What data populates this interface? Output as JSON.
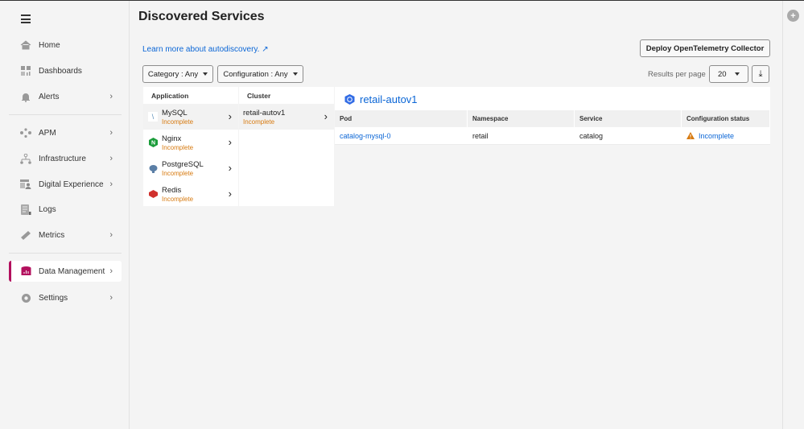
{
  "sidebar": {
    "items": [
      {
        "label": "Home",
        "icon": "home-icon",
        "chevron": false
      },
      {
        "label": "Dashboards",
        "icon": "dashboards-icon",
        "chevron": false
      },
      {
        "label": "Alerts",
        "icon": "bell-icon",
        "chevron": true
      },
      {
        "label": "APM",
        "icon": "apm-icon",
        "chevron": true
      },
      {
        "label": "Infrastructure",
        "icon": "infrastructure-icon",
        "chevron": true
      },
      {
        "label": "Digital Experience",
        "icon": "digital-experience-icon",
        "chevron": true
      },
      {
        "label": "Logs",
        "icon": "logs-icon",
        "chevron": false
      },
      {
        "label": "Metrics",
        "icon": "metrics-icon",
        "chevron": true
      },
      {
        "label": "Data Management",
        "icon": "data-management-icon",
        "chevron": true,
        "active": true
      },
      {
        "label": "Settings",
        "icon": "gear-icon",
        "chevron": true
      }
    ],
    "accent": "#b3105e"
  },
  "page": {
    "title": "Discovered Services",
    "learn_link": "Learn more about autodiscovery.",
    "deploy_button": "Deploy OpenTelemetry Collector"
  },
  "filters": {
    "category": "Category : Any",
    "configuration": "Configuration : Any"
  },
  "pagination": {
    "results_label": "Results per page",
    "per_page": "20"
  },
  "applications": {
    "header": "Application",
    "items": [
      {
        "name": "MySQL",
        "status": "Incomplete",
        "icon": "mysql-icon",
        "selected": true
      },
      {
        "name": "Nginx",
        "status": "Incomplete",
        "icon": "nginx-icon"
      },
      {
        "name": "PostgreSQL",
        "status": "Incomplete",
        "icon": "postgresql-icon"
      },
      {
        "name": "Redis",
        "status": "Incomplete",
        "icon": "redis-icon"
      }
    ]
  },
  "clusters": {
    "header": "Cluster",
    "items": [
      {
        "name": "retail-autov1",
        "status": "Incomplete"
      }
    ]
  },
  "detail": {
    "title": "retail-autov1",
    "columns": [
      "Pod",
      "Namespace",
      "Service",
      "Configuration status"
    ],
    "rows": [
      {
        "pod": "catalog-mysql-0",
        "namespace": "retail",
        "service": "catalog",
        "status": "Incomplete"
      }
    ]
  },
  "colors": {
    "link": "#0b66d6",
    "warning": "#d77a10"
  }
}
